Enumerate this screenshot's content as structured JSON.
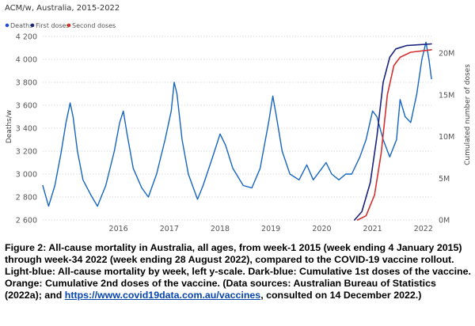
{
  "chart_data": {
    "type": "line",
    "title": "ACM/w, Australia, 2015-2022",
    "ylabel_left": "Deaths/w",
    "ylabel_right": "Cumulated number of doses",
    "y_left_ticks": [
      "2 600",
      "2 800",
      "3 000",
      "3 200",
      "3 400",
      "3 600",
      "3 800",
      "4 000",
      "4 200"
    ],
    "ylim_left": [
      2600,
      4200
    ],
    "y_right_ticks": [
      "0M",
      "5M",
      "10M",
      "15M",
      "20M"
    ],
    "ylim_right": [
      0,
      22000000
    ],
    "x_ticks": [
      "2016",
      "2017",
      "2018",
      "2019",
      "2020",
      "2021",
      "2022"
    ],
    "xlim": [
      "2015-01-04",
      "2022-08-28"
    ],
    "legend": [
      {
        "name": "Deaths",
        "color": "#1f4fd0"
      },
      {
        "name": "First doses",
        "color": "#1a237e"
      },
      {
        "name": "Second doses",
        "color": "#d32f2f"
      }
    ],
    "series": [
      {
        "name": "Deaths",
        "axis": "left",
        "color": "#1565c0",
        "points": [
          [
            "2015-01-04",
            2900
          ],
          [
            "2015-02-15",
            2720
          ],
          [
            "2015-04-01",
            2900
          ],
          [
            "2015-05-15",
            3180
          ],
          [
            "2015-06-20",
            3450
          ],
          [
            "2015-07-20",
            3620
          ],
          [
            "2015-08-10",
            3500
          ],
          [
            "2015-09-10",
            3200
          ],
          [
            "2015-10-20",
            2950
          ],
          [
            "2015-12-15",
            2820
          ],
          [
            "2016-02-01",
            2720
          ],
          [
            "2016-04-01",
            2900
          ],
          [
            "2016-06-01",
            3200
          ],
          [
            "2016-07-10",
            3450
          ],
          [
            "2016-08-05",
            3550
          ],
          [
            "2016-09-01",
            3350
          ],
          [
            "2016-10-15",
            3050
          ],
          [
            "2016-12-15",
            2880
          ],
          [
            "2017-02-01",
            2800
          ],
          [
            "2017-04-01",
            3000
          ],
          [
            "2017-06-01",
            3300
          ],
          [
            "2017-07-15",
            3550
          ],
          [
            "2017-08-05",
            3800
          ],
          [
            "2017-08-25",
            3700
          ],
          [
            "2017-10-01",
            3300
          ],
          [
            "2017-11-15",
            3000
          ],
          [
            "2018-01-20",
            2780
          ],
          [
            "2018-03-01",
            2900
          ],
          [
            "2018-05-01",
            3120
          ],
          [
            "2018-07-01",
            3350
          ],
          [
            "2018-08-10",
            3250
          ],
          [
            "2018-10-01",
            3050
          ],
          [
            "2018-12-15",
            2900
          ],
          [
            "2019-02-15",
            2880
          ],
          [
            "2019-04-15",
            3050
          ],
          [
            "2019-06-15",
            3450
          ],
          [
            "2019-07-15",
            3680
          ],
          [
            "2019-08-10",
            3500
          ],
          [
            "2019-09-20",
            3200
          ],
          [
            "2019-11-15",
            3000
          ],
          [
            "2020-01-20",
            2950
          ],
          [
            "2020-03-15",
            3080
          ],
          [
            "2020-05-01",
            2950
          ],
          [
            "2020-07-01",
            3050
          ],
          [
            "2020-08-01",
            3100
          ],
          [
            "2020-09-10",
            3000
          ],
          [
            "2020-11-01",
            2950
          ],
          [
            "2020-12-20",
            3000
          ],
          [
            "2021-02-01",
            3000
          ],
          [
            "2021-04-01",
            3150
          ],
          [
            "2021-05-15",
            3300
          ],
          [
            "2021-07-01",
            3550
          ],
          [
            "2021-08-01",
            3500
          ],
          [
            "2021-09-15",
            3300
          ],
          [
            "2021-11-01",
            3150
          ],
          [
            "2021-12-20",
            3300
          ],
          [
            "2022-01-15",
            3650
          ],
          [
            "2022-02-20",
            3500
          ],
          [
            "2022-04-01",
            3450
          ],
          [
            "2022-05-15",
            3700
          ],
          [
            "2022-06-20",
            4000
          ],
          [
            "2022-07-20",
            4150
          ],
          [
            "2022-08-10",
            4000
          ],
          [
            "2022-08-28",
            3830
          ]
        ]
      },
      {
        "name": "First doses",
        "axis": "right",
        "color": "#1a237e",
        "points": [
          [
            "2021-02-21",
            0
          ],
          [
            "2021-04-15",
            1000000
          ],
          [
            "2021-06-15",
            4500000
          ],
          [
            "2021-08-01",
            10000000
          ],
          [
            "2021-09-15",
            16500000
          ],
          [
            "2021-11-01",
            19500000
          ],
          [
            "2021-12-15",
            20500000
          ],
          [
            "2022-03-01",
            20900000
          ],
          [
            "2022-08-28",
            21100000
          ]
        ]
      },
      {
        "name": "Second doses",
        "axis": "right",
        "color": "#d32f2f",
        "points": [
          [
            "2021-03-15",
            0
          ],
          [
            "2021-05-15",
            500000
          ],
          [
            "2021-07-15",
            3000000
          ],
          [
            "2021-09-01",
            8000000
          ],
          [
            "2021-10-15",
            15000000
          ],
          [
            "2021-12-01",
            18500000
          ],
          [
            "2022-01-15",
            19500000
          ],
          [
            "2022-04-01",
            20100000
          ],
          [
            "2022-08-28",
            20400000
          ]
        ]
      }
    ]
  },
  "caption": {
    "text_before_link": "Figure 2: All-cause mortality in Australia, all ages, from week-1 2015 (week ending 4 January 2015) through week-34 2022 (week ending 28 August 2022), compared to the COVID-19 vaccine rollout. Light-blue: All-cause mortality by week, left y-scale. Dark-blue: Cumulative 1st doses of the vaccine. Orange: Cumulative 2nd doses of the vaccine. (Data sources: Australian Bureau of Statistics (2022a); and ",
    "link_text": "https://www.covid19data.com.au/vaccines",
    "text_after_link": ", consulted on 14 December 2022.)"
  }
}
